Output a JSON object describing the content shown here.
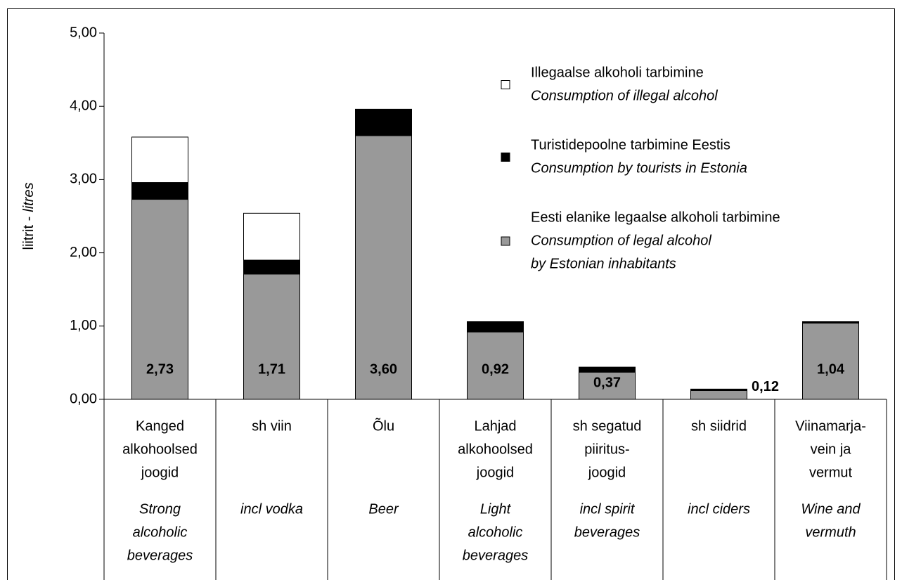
{
  "chart_data": {
    "type": "stacked_bar",
    "ylabel": {
      "text": "liitrit -",
      "italic": "litres"
    },
    "categories": [
      [
        "Kanged",
        "alkohoolsed",
        "joogid"
      ],
      [
        "sh viin"
      ],
      [
        "Õlu"
      ],
      [
        "Lahjad",
        "alkohoolsed",
        "joogid"
      ],
      [
        "sh segatud",
        "piiritus-",
        "joogid"
      ],
      [
        "sh siidrid"
      ],
      [
        "Viinamarja-",
        "vein ja",
        "vermut"
      ]
    ],
    "categories_en": [
      [
        "Strong",
        "alcoholic",
        "beverages"
      ],
      [
        "incl vodka"
      ],
      [
        "Beer"
      ],
      [
        "Light",
        "alcoholic",
        "beverages"
      ],
      [
        "incl spirit",
        "beverages"
      ],
      [
        "incl ciders"
      ],
      [
        "Wine and",
        "vermuth"
      ]
    ],
    "series": [
      {
        "name": "Illegaalse alkoholi tarbimine",
        "name_en": [
          "Consumption of illegal alcohol"
        ],
        "color": "#ffffff",
        "values": [
          0.62,
          0.64,
          0,
          0,
          0,
          0,
          0
        ]
      },
      {
        "name": "Turistidepoolne tarbimine Eestis",
        "name_en": [
          "Consumption by tourists in Estonia"
        ],
        "color": "#000000",
        "values": [
          0.23,
          0.19,
          0.36,
          0.14,
          0.07,
          0.02,
          0.02
        ]
      },
      {
        "name": "Eesti elanike legaalse alkoholi tarbimine",
        "name_en": [
          "Consumption of legal alcohol",
          "by Estonian inhabitants"
        ],
        "color": "#999999",
        "values": [
          2.73,
          1.71,
          3.6,
          0.92,
          0.37,
          0.12,
          1.04
        ],
        "value_labels": [
          "2,73",
          "1,71",
          "3,60",
          "0,92",
          "0,37",
          "0,12",
          "1,04"
        ]
      }
    ],
    "ylim": [
      0,
      5
    ],
    "yticks": [
      {
        "value": 0,
        "label": "0,00"
      },
      {
        "value": 1,
        "label": "1,00"
      },
      {
        "value": 2,
        "label": "2,00"
      },
      {
        "value": 3,
        "label": "3,00"
      },
      {
        "value": 4,
        "label": "4,00"
      },
      {
        "value": 5,
        "label": "5,00"
      }
    ]
  }
}
